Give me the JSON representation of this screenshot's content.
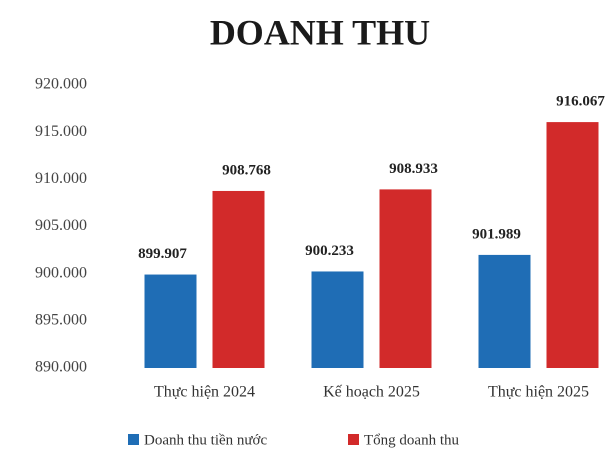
{
  "chart_data": {
    "type": "bar",
    "title": "DOANH THU",
    "categories": [
      "Thực hiện 2024",
      "Kế hoạch 2025",
      "Thực hiện 2025"
    ],
    "series": [
      {
        "name": "Doanh thu tiền nước",
        "color": "#1f6db5",
        "values": [
          899907,
          900233,
          901989
        ],
        "value_labels": [
          "899.907",
          "900.233",
          "901.989"
        ]
      },
      {
        "name": "Tổng doanh thu",
        "color": "#d22a2a",
        "values": [
          908768,
          908933,
          916067
        ],
        "value_labels": [
          "908.768",
          "908.933",
          "916.067"
        ]
      }
    ],
    "ylim": [
      890000,
      920000
    ],
    "yticks": [
      {
        "value": 890000,
        "label": "890.000"
      },
      {
        "value": 895000,
        "label": "895.000"
      },
      {
        "value": 900000,
        "label": "900.000"
      },
      {
        "value": 905000,
        "label": "905.000"
      },
      {
        "value": 910000,
        "label": "910.000"
      },
      {
        "value": 915000,
        "label": "915.000"
      },
      {
        "value": 920000,
        "label": "920.000"
      }
    ],
    "grid": false,
    "legend": "bottom"
  }
}
